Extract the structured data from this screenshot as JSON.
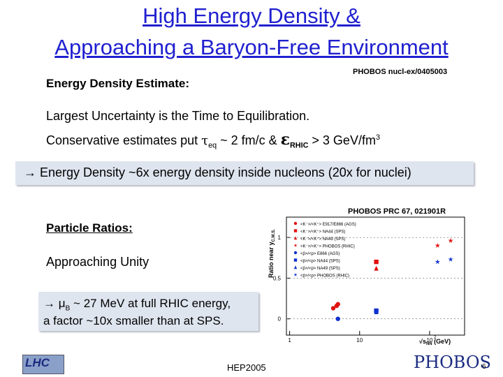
{
  "header": {
    "title_lines": [
      "High Energy Density &",
      "Approaching a Baryon-Free Environment"
    ]
  },
  "section1": {
    "heading": "Energy Density Estimate:",
    "reference": "PHOBOS nucl-ex/0405003",
    "line1": "Largest Uncertainty is the Time to Equilibration.",
    "line2": [
      "Conservative estimates put ",
      "τ",
      "eq",
      " ~ 2 fm/c & ",
      "ε",
      "RHIC",
      " > 3 GeV/fm",
      "3"
    ],
    "highlight": "→ Energy Density ~6x energy density inside nucleons (20x for nuclei)"
  },
  "section2": {
    "heading": "Particle Ratios:",
    "reference": "PHOBOS PRC 67, 021901R",
    "line1": "Approaching Unity",
    "highlight_line1": [
      "→ ",
      "μ",
      "B",
      " ~ 27 MeV at full RHIC energy,"
    ],
    "highlight_line2": "a factor ~10x smaller than at SPS."
  },
  "figure": {
    "y_label": "Ratio near y",
    "y_label_sub": "C.M.S.",
    "x_label_root": "√s",
    "x_label_sub": "NN",
    "x_label_unit": " (GeV)",
    "xlog": true,
    "xlim": [
      0.9,
      316
    ],
    "ylim": [
      -0.2,
      1.25
    ],
    "xticks": [
      1,
      10,
      {
        "value": 100,
        "label": "10",
        "sup": "2"
      }
    ],
    "yticks": [
      0,
      0.5,
      1
    ],
    "series": [
      {
        "name": "<K⁻>/<K⁺> E917/E866 (AGS)",
        "color": "#e01010",
        "marker": "circle",
        "x": [
          4.2,
          4.7,
          4.9
        ],
        "y": [
          0.13,
          0.16,
          0.18
        ]
      },
      {
        "name": "<K⁻>/<K⁺> NA44 (SPS)",
        "color": "#e01010",
        "marker": "square",
        "x": [
          17.3
        ],
        "y": [
          0.7
        ]
      },
      {
        "name": "<K⁻>/<K⁺> NA49 (SPS)",
        "color": "#e01010",
        "marker": "triangle",
        "x": [
          17.3
        ],
        "y": [
          0.62
        ]
      },
      {
        "name": "<K⁻>/<K⁺> PHOBOS (RHIC)",
        "color": "#e01010",
        "marker": "star",
        "x": [
          130,
          200
        ],
        "y": [
          0.9,
          0.96
        ]
      },
      {
        "name": "<p̄>/<p> E866 (AGS)",
        "color": "#1030d0",
        "marker": "circle",
        "x": [
          4.9
        ],
        "y": [
          0.0
        ]
      },
      {
        "name": "<p̄>/<p> NA44 (SPS)",
        "color": "#1030d0",
        "marker": "square",
        "x": [
          17.3
        ],
        "y": [
          0.1
        ]
      },
      {
        "name": "<p̄>/<p> NA49 (SPS)",
        "color": "#1030d0",
        "marker": "triangle",
        "x": [
          17.3
        ],
        "y": [
          0.085
        ]
      },
      {
        "name": "<p̄>/<p> PHOBOS (RHIC)",
        "color": "#1030d0",
        "marker": "star",
        "x": [
          130,
          200
        ],
        "y": [
          0.7,
          0.73
        ]
      }
    ]
  },
  "footer": {
    "left_logo": "LHC",
    "center": "HEP2005",
    "right_logo": "PHOBOS",
    "page_number": "6"
  }
}
